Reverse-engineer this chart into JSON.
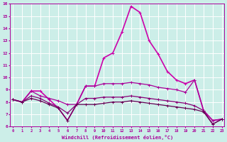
{
  "x": [
    0,
    1,
    2,
    3,
    4,
    5,
    6,
    7,
    8,
    9,
    10,
    11,
    12,
    13,
    14,
    15,
    16,
    17,
    18,
    19,
    20,
    21,
    22,
    23
  ],
  "lines": [
    {
      "y": [
        8.2,
        8.0,
        8.9,
        8.9,
        8.2,
        7.5,
        6.5,
        7.8,
        9.3,
        9.3,
        11.6,
        12.0,
        13.7,
        15.8,
        15.3,
        13.0,
        11.9,
        10.5,
        9.8,
        9.5,
        9.8,
        7.3,
        6.5,
        6.6
      ],
      "color": "#cc00aa",
      "lw": 1.2,
      "marker": "+"
    },
    {
      "y": [
        8.2,
        8.0,
        8.9,
        8.5,
        8.3,
        8.1,
        7.8,
        7.8,
        9.3,
        9.3,
        9.5,
        9.5,
        9.5,
        9.6,
        9.5,
        9.4,
        9.2,
        9.1,
        9.0,
        8.8,
        9.8,
        7.3,
        6.5,
        6.6
      ],
      "color": "#aa0099",
      "lw": 0.9,
      "marker": "+"
    },
    {
      "y": [
        8.2,
        8.0,
        8.5,
        8.3,
        7.9,
        7.6,
        7.1,
        7.8,
        8.3,
        8.3,
        8.4,
        8.4,
        8.4,
        8.5,
        8.4,
        8.3,
        8.2,
        8.1,
        8.0,
        7.9,
        7.7,
        7.3,
        6.2,
        6.6
      ],
      "color": "#880077",
      "lw": 0.9,
      "marker": "+"
    },
    {
      "y": [
        8.2,
        8.0,
        8.3,
        8.1,
        7.8,
        7.5,
        6.5,
        7.8,
        7.8,
        7.8,
        7.9,
        8.0,
        8.0,
        8.1,
        8.0,
        7.9,
        7.8,
        7.7,
        7.6,
        7.5,
        7.4,
        7.2,
        6.2,
        6.6
      ],
      "color": "#660055",
      "lw": 0.9,
      "marker": "+"
    }
  ],
  "xlim": [
    -0.3,
    23.3
  ],
  "ylim": [
    6,
    16
  ],
  "yticks": [
    6,
    7,
    8,
    9,
    10,
    11,
    12,
    13,
    14,
    15,
    16
  ],
  "xtick_labels": [
    "0",
    "1",
    "2",
    "3",
    "4",
    "5",
    "6",
    "7",
    "8",
    "9",
    "10",
    "11",
    "12",
    "13",
    "14",
    "15",
    "16",
    "17",
    "18",
    "19",
    "20",
    "21",
    "22",
    "23"
  ],
  "xlabel": "Windchill (Refroidissement éolien,°C)",
  "bg_color": "#cceee8",
  "grid_color": "#ffffff",
  "tick_color": "#aa0099",
  "label_color": "#aa0099"
}
